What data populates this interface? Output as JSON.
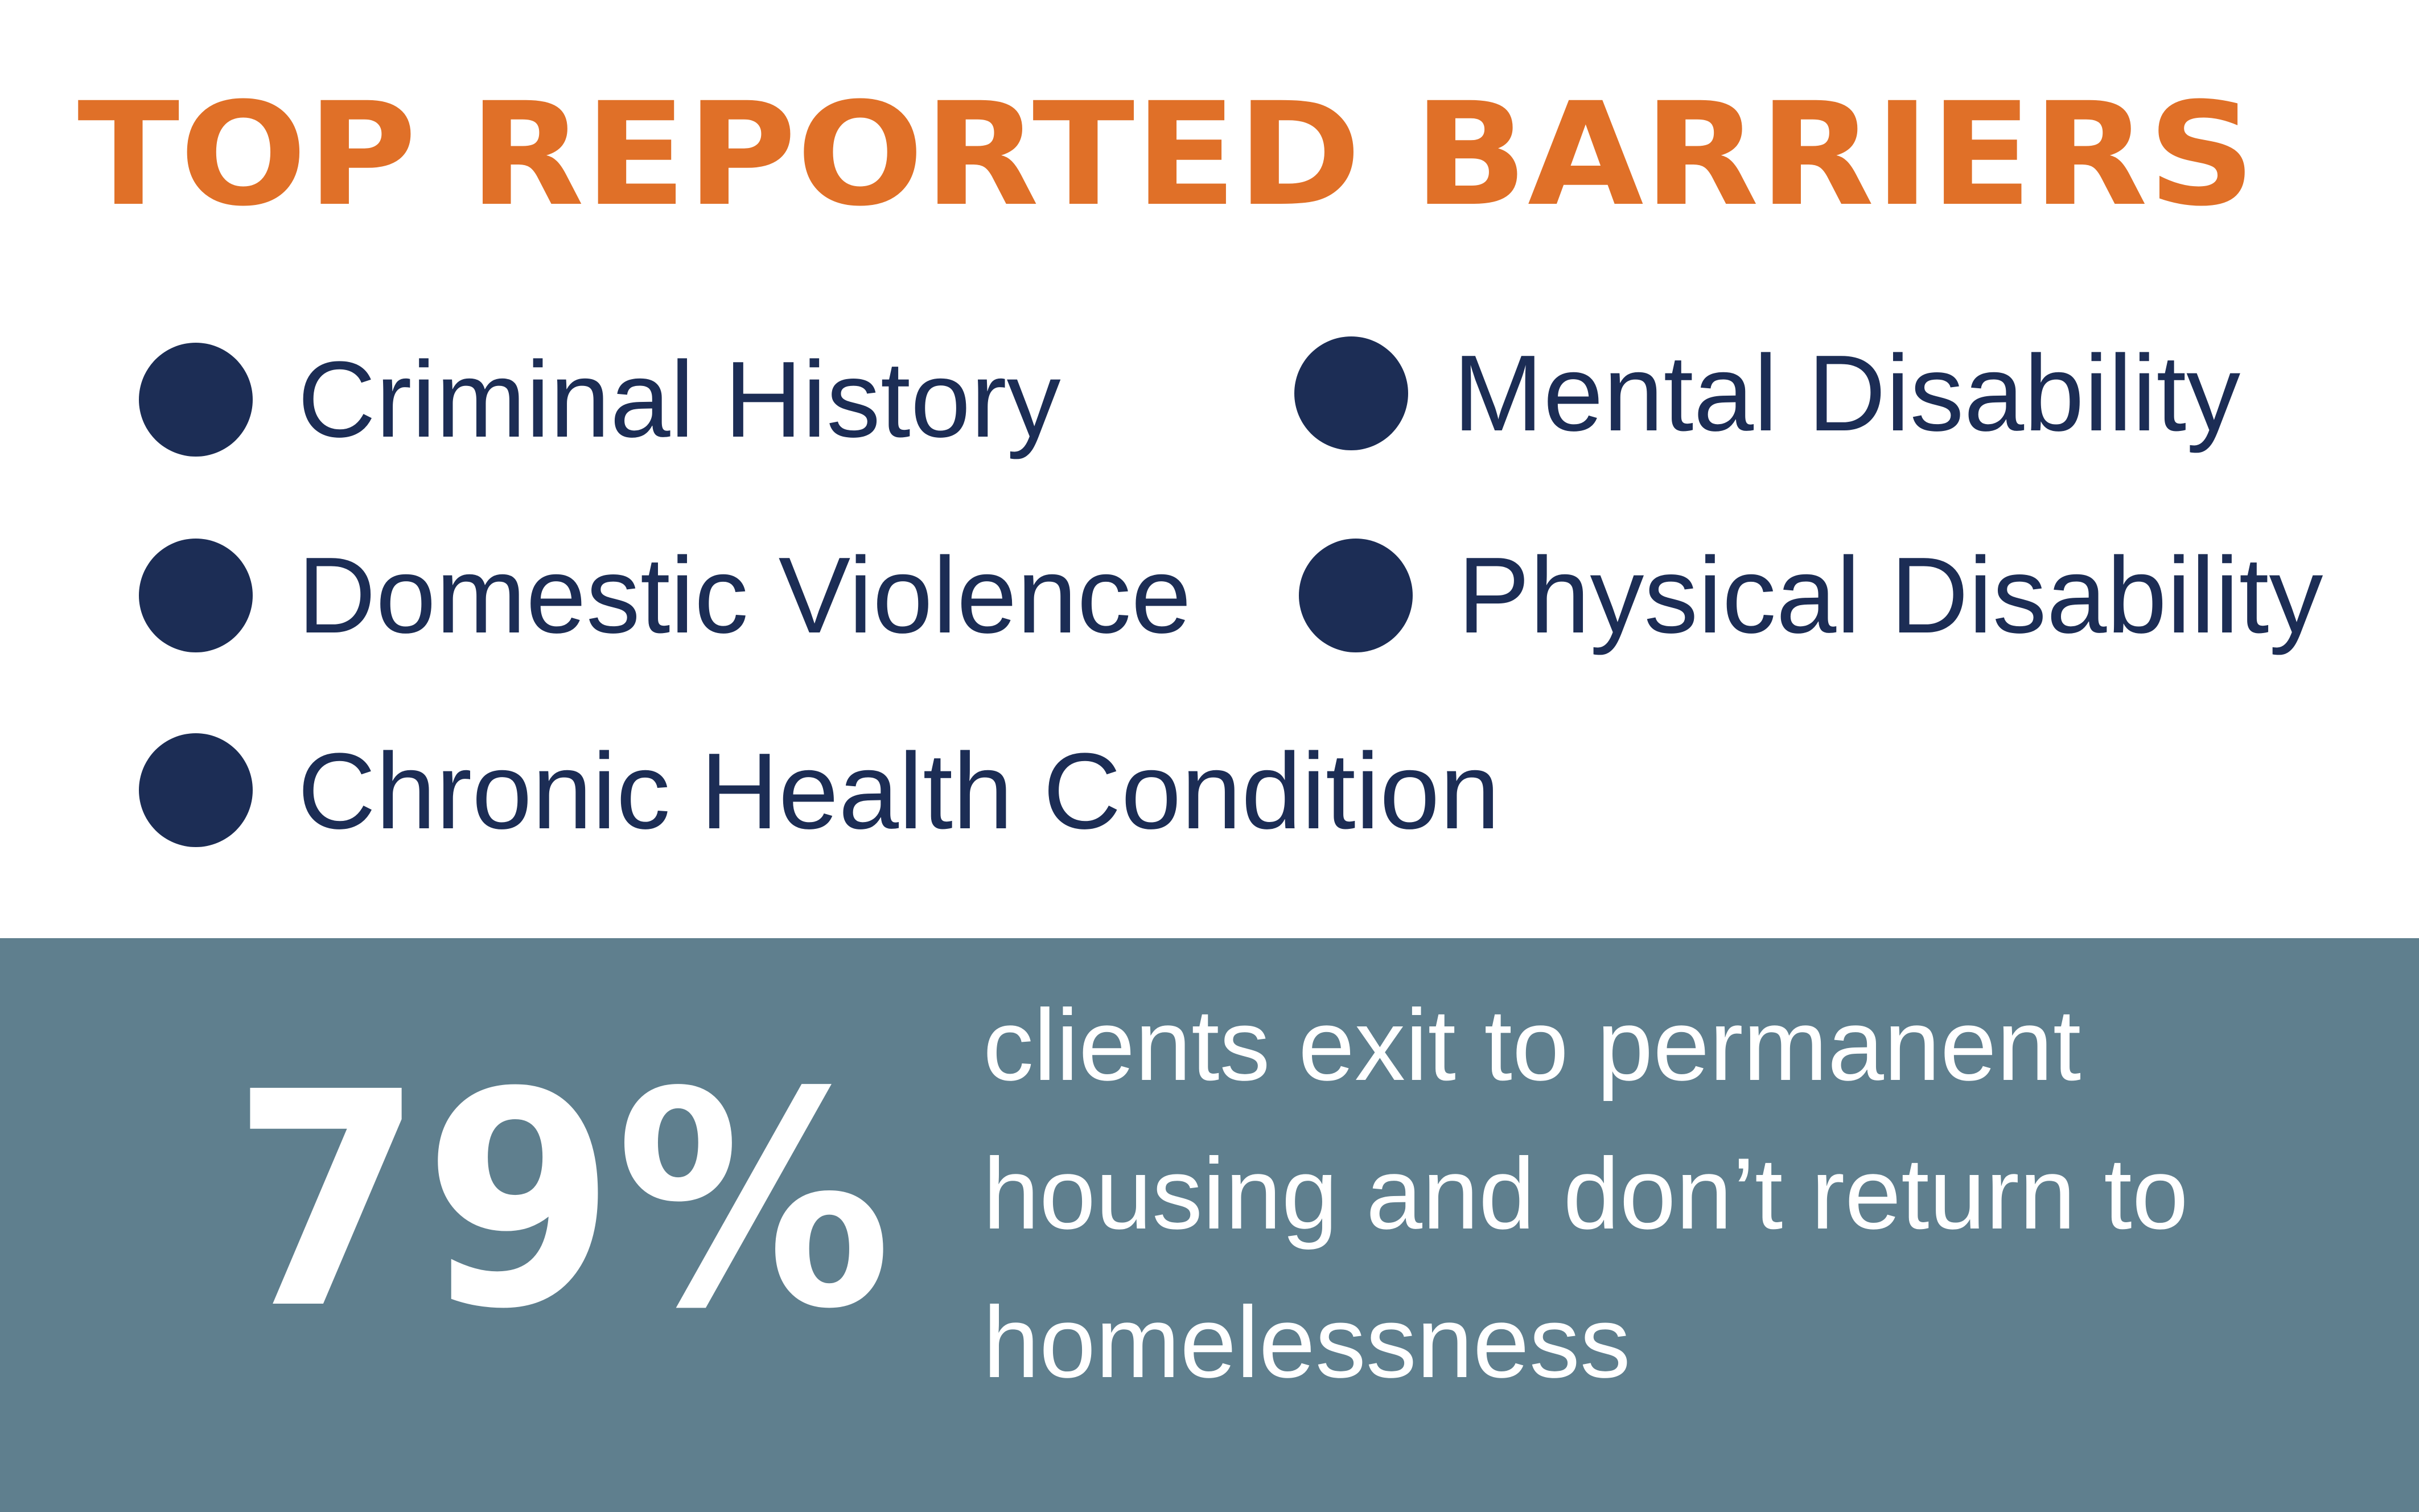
{
  "header": {
    "title": "TOP REPORTED BARRIERS"
  },
  "barriers": [
    "Criminal History",
    "Mental Disability",
    "Domestic Violence",
    "Physical Disability",
    "Chronic Health Condition"
  ],
  "stat": {
    "value": "79%",
    "description_lines": [
      "clients exit to permanent",
      "housing and don’t return to",
      "homelessness"
    ]
  }
}
